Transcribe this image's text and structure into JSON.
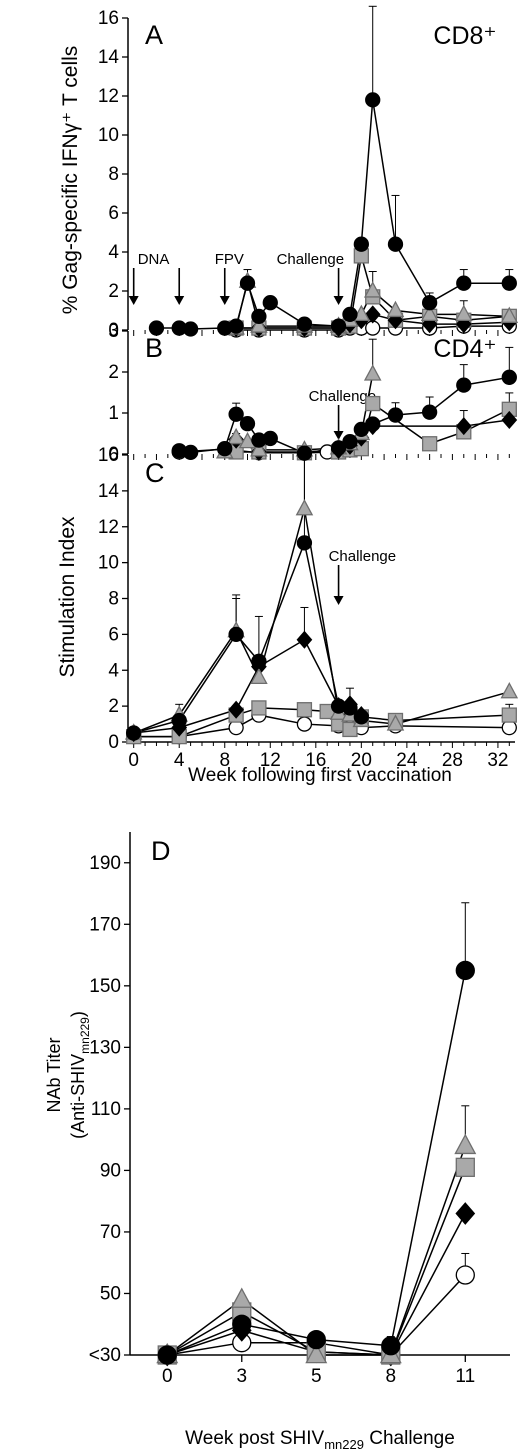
{
  "figure": {
    "shared_ylabel": "% Gag-specific IFNγ⁺ T cells",
    "week_axis_label": "Week following first vaccination"
  },
  "chart_data": [
    {
      "panel": "A",
      "type": "line",
      "title": "CD8⁺",
      "xlim": [
        -0.5,
        33.5
      ],
      "ylim": [
        0,
        16
      ],
      "yticks": [
        0,
        2,
        4,
        6,
        8,
        10,
        12,
        14,
        16
      ],
      "arrows": [
        {
          "x": 0,
          "label": "DNA"
        },
        {
          "x": 4,
          "label": ""
        },
        {
          "x": 8,
          "label": "FPV"
        },
        {
          "x": 18,
          "label": "Challenge"
        }
      ],
      "series": [
        {
          "marker": "circle-filled",
          "x": [
            2,
            4,
            5,
            8,
            9,
            10,
            11,
            12,
            15,
            18,
            19,
            20,
            21,
            23,
            26,
            29,
            33
          ],
          "y": [
            0.1,
            0.1,
            0.05,
            0.1,
            0.2,
            2.4,
            0.7,
            1.4,
            0.3,
            0.2,
            0.8,
            4.4,
            11.8,
            4.4,
            1.4,
            2.4,
            2.4
          ],
          "err": [
            0,
            0,
            0,
            0,
            0,
            0,
            0,
            0,
            0,
            0,
            0,
            0,
            4.8,
            2.5,
            0.5,
            0.7,
            0.7
          ]
        },
        {
          "marker": "triangle-gray",
          "x": [
            9,
            10,
            11,
            15,
            18,
            19,
            20,
            21,
            23,
            26,
            29,
            33
          ],
          "y": [
            0.1,
            2.5,
            0.2,
            0.2,
            0.2,
            0.5,
            0.8,
            2.0,
            1.0,
            0.8,
            0.8,
            0.7
          ],
          "err": [
            0,
            0.6,
            0,
            0,
            0,
            0,
            0,
            1.0,
            0,
            0,
            0.7,
            0
          ]
        },
        {
          "marker": "diamond-filled",
          "x": [
            9,
            11,
            15,
            18,
            19,
            20,
            21,
            23,
            26,
            29,
            33
          ],
          "y": [
            0.1,
            0.1,
            0.1,
            0.1,
            0.3,
            0.5,
            0.8,
            0.5,
            0.3,
            0.3,
            0.4
          ],
          "err": [
            0,
            0,
            0,
            0,
            0,
            0,
            0,
            0,
            0,
            0,
            0
          ]
        },
        {
          "marker": "square-gray",
          "x": [
            9,
            11,
            15,
            18,
            19,
            20,
            21,
            23,
            26,
            29,
            33
          ],
          "y": [
            0.1,
            0.1,
            0.1,
            0.1,
            0.2,
            3.8,
            1.7,
            0.5,
            0.7,
            0.5,
            0.7
          ],
          "err": [
            0,
            0,
            0,
            0,
            0,
            0.3,
            0,
            0,
            0,
            0,
            0
          ]
        },
        {
          "marker": "circle-open",
          "x": [
            9,
            11,
            15,
            18,
            19,
            20,
            21,
            23,
            26,
            29,
            33
          ],
          "y": [
            0,
            0,
            0,
            0,
            0.1,
            0.1,
            0.1,
            0.1,
            0.1,
            0.2,
            0.2
          ],
          "err": [
            0,
            0,
            0,
            0,
            0,
            0,
            0,
            0,
            0,
            0,
            0
          ]
        }
      ]
    },
    {
      "panel": "B",
      "type": "line",
      "title": "CD4⁺",
      "xlim": [
        -0.5,
        33.5
      ],
      "ylim": [
        0,
        3
      ],
      "yticks": [
        0,
        1,
        2,
        3
      ],
      "arrows": [
        {
          "x": 18,
          "label": "Challenge"
        }
      ],
      "series": [
        {
          "marker": "circle-filled",
          "x": [
            4,
            5,
            8,
            9,
            10,
            11,
            12,
            15,
            18,
            19,
            20,
            21,
            23,
            26,
            29,
            33
          ],
          "y": [
            0.08,
            0.04,
            0.13,
            0.97,
            0.74,
            0.34,
            0.38,
            0.02,
            0.15,
            0.3,
            0.6,
            0.73,
            0.95,
            1.02,
            1.68,
            1.87
          ],
          "err": [
            0,
            0,
            0,
            0.27,
            0.15,
            0,
            0,
            0,
            0,
            0,
            0,
            0,
            0.3,
            0.37,
            0.5,
            0.73
          ]
        },
        {
          "marker": "triangle-gray",
          "x": [
            8,
            9,
            10,
            11,
            15,
            18,
            19,
            20,
            21
          ],
          "y": [
            0.05,
            0.4,
            0.3,
            0.1,
            0.1,
            0.15,
            0.25,
            0.5,
            1.95
          ],
          "err": [
            0,
            0.1,
            0,
            0,
            0,
            0,
            0,
            0,
            0.85
          ]
        },
        {
          "marker": "diamond-filled",
          "x": [
            9,
            11,
            15,
            18,
            19,
            20,
            21,
            29,
            33
          ],
          "y": [
            0.35,
            0.05,
            0.05,
            0.1,
            0.2,
            0.4,
            0.68,
            0.68,
            0.83
          ],
          "err": [
            0,
            0,
            0,
            0,
            0,
            0,
            0,
            0,
            0
          ]
        },
        {
          "marker": "square-gray",
          "x": [
            9,
            11,
            15,
            18,
            19,
            20,
            21,
            26,
            29,
            33
          ],
          "y": [
            0.05,
            0.05,
            0.03,
            0.05,
            0.1,
            0.13,
            1.23,
            0.25,
            0.54,
            1.09
          ],
          "err": [
            0,
            0,
            0,
            0,
            0,
            0,
            0,
            0,
            0.52,
            0.4
          ]
        },
        {
          "marker": "circle-open",
          "x": [
            4,
            8,
            11,
            15,
            17,
            18
          ],
          "y": [
            0.05,
            0.12,
            0.03,
            0.03,
            0.05,
            0.05
          ],
          "err": [
            0,
            0,
            0,
            0,
            0,
            0
          ]
        }
      ]
    },
    {
      "panel": "C",
      "type": "line",
      "title": "",
      "ylabel": "Stimulation Index",
      "xlabel": "Week following first vaccination",
      "xlim": [
        -0.5,
        33.5
      ],
      "ylim": [
        0,
        16
      ],
      "xticks": [
        0,
        4,
        8,
        12,
        16,
        20,
        24,
        28,
        32
      ],
      "yticks": [
        0,
        2,
        4,
        6,
        8,
        10,
        12,
        14,
        16
      ],
      "arrows": [
        {
          "x": 18,
          "label": "Challenge"
        }
      ],
      "series": [
        {
          "marker": "circle-filled",
          "x": [
            0,
            4,
            9,
            11,
            15,
            18,
            19,
            20
          ],
          "y": [
            0.5,
            1.2,
            6.0,
            4.5,
            11.1,
            2.0,
            1.9,
            1.4
          ],
          "err": [
            0,
            0,
            2.0,
            2.5,
            4.7,
            0,
            0,
            0
          ]
        },
        {
          "marker": "triangle-gray",
          "x": [
            0,
            4,
            9,
            11,
            15,
            18,
            19,
            20,
            23,
            33
          ],
          "y": [
            0.5,
            1.5,
            6.2,
            3.6,
            13.0,
            1.6,
            1.5,
            1.2,
            1.0,
            2.8
          ],
          "err": [
            0,
            0.6,
            2.0,
            0,
            3.2,
            0,
            0,
            0,
            0,
            0
          ]
        },
        {
          "marker": "diamond-filled",
          "x": [
            0,
            4,
            9,
            11,
            15,
            18,
            19,
            20
          ],
          "y": [
            0.5,
            0.8,
            1.8,
            4.2,
            5.7,
            2.0,
            2.1,
            1.5
          ],
          "err": [
            0,
            0,
            0,
            0,
            1.8,
            0,
            0.9,
            0
          ]
        },
        {
          "marker": "square-gray",
          "x": [
            0,
            4,
            9,
            11,
            15,
            17,
            18,
            19,
            20,
            23,
            33
          ],
          "y": [
            0.3,
            0.3,
            1.5,
            1.9,
            1.8,
            1.7,
            1.0,
            0.7,
            1.4,
            1.2,
            1.5
          ],
          "err": [
            0,
            0,
            0,
            0,
            0,
            0,
            0,
            0,
            0,
            0,
            0.6
          ]
        },
        {
          "marker": "circle-open",
          "x": [
            0,
            4,
            9,
            11,
            15,
            18,
            19,
            20,
            23,
            33
          ],
          "y": [
            0.3,
            0.3,
            0.8,
            1.5,
            1.0,
            0.9,
            0.8,
            0.8,
            0.9,
            0.8
          ],
          "err": [
            0,
            0,
            0,
            0,
            0,
            0,
            0,
            0,
            0,
            0
          ]
        }
      ]
    },
    {
      "panel": "D",
      "type": "line",
      "title": "",
      "ylabel": "NAb Titer (Anti-SHIVmn229)",
      "xlabel": "Week post SHIVmn229 Challenge",
      "categories": [
        "0",
        "3",
        "5",
        "8",
        "11"
      ],
      "xlim": [
        -0.5,
        4.6
      ],
      "ylim": [
        30,
        200
      ],
      "yticks": [
        30,
        50,
        70,
        90,
        110,
        130,
        150,
        170,
        190
      ],
      "yticklabels": [
        "<30",
        "50",
        "70",
        "90",
        "110",
        "130",
        "150",
        "170",
        "190"
      ],
      "series": [
        {
          "marker": "circle-filled",
          "values": [
            30,
            40,
            35,
            33,
            155
          ],
          "err": [
            0,
            0,
            0,
            0,
            22
          ]
        },
        {
          "marker": "triangle-gray",
          "values": [
            30,
            48,
            30,
            30,
            98
          ],
          "err": [
            0,
            0,
            0,
            6,
            13
          ]
        },
        {
          "marker": "square-gray",
          "values": [
            30,
            44,
            31,
            30,
            91
          ],
          "err": [
            0,
            0,
            0,
            0,
            0
          ]
        },
        {
          "marker": "diamond-filled",
          "values": [
            30,
            38,
            31,
            30,
            76
          ],
          "err": [
            0,
            0,
            0,
            0,
            0
          ]
        },
        {
          "marker": "circle-open",
          "values": [
            30,
            34,
            34,
            30,
            56
          ],
          "err": [
            0,
            0,
            0,
            0,
            7
          ]
        }
      ]
    }
  ]
}
